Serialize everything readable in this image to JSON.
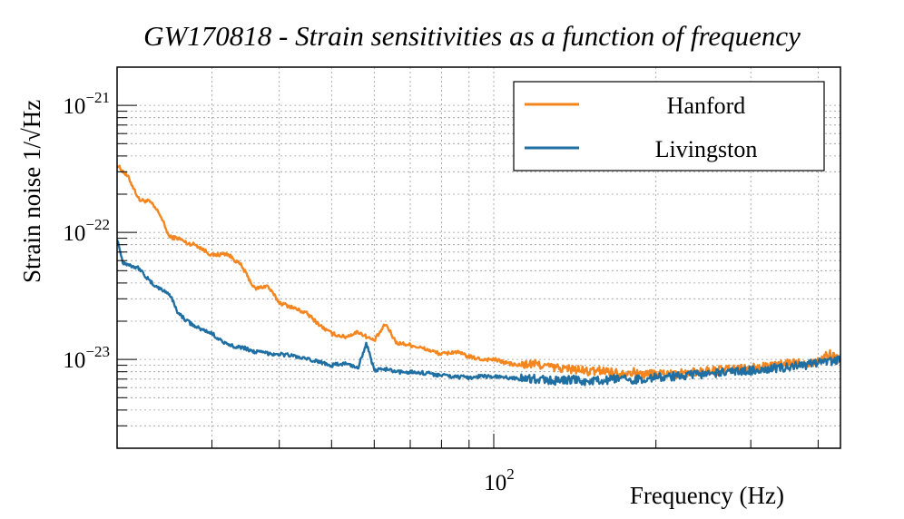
{
  "chart_data": {
    "type": "line",
    "title": "GW170818 - Strain sensitivities as a function of frequency",
    "xlabel": "Frequency (Hz)",
    "ylabel": "Strain noise 1/√Hz",
    "x_scale": "log",
    "y_scale": "log",
    "xlim": [
      20,
      440
    ],
    "ylim": [
      2e-24,
      2e-21
    ],
    "grid": true,
    "legend": "top-right",
    "x_ticks": [
      {
        "value": 100,
        "base": "10",
        "exp": "2"
      }
    ],
    "y_ticks": [
      {
        "value": 1e-21,
        "base": "10",
        "exp": "−21"
      },
      {
        "value": 1e-22,
        "base": "10",
        "exp": "−22"
      },
      {
        "value": 1e-23,
        "base": "10",
        "exp": "−23"
      }
    ],
    "series": [
      {
        "name": "Hanford",
        "color": "#f5851f",
        "x": [
          20,
          21,
          22,
          23,
          24,
          25,
          26,
          27,
          28,
          30,
          32,
          34,
          36,
          38,
          40,
          42,
          45,
          48,
          50,
          53,
          56,
          60,
          63,
          66,
          70,
          75,
          80,
          85,
          90,
          95,
          100,
          110,
          120,
          130,
          140,
          150,
          160,
          170,
          180,
          190,
          200,
          220,
          240,
          260,
          280,
          300,
          320,
          340,
          360,
          380,
          400,
          420,
          440
        ],
        "y": [
          3.4e-22,
          2.7e-22,
          1.8e-22,
          1.75e-22,
          1.4e-22,
          9.2e-23,
          9e-23,
          8.2e-23,
          8e-23,
          6.6e-23,
          6.8e-23,
          5.5e-23,
          3.6e-23,
          3.8e-23,
          2.8e-23,
          2.6e-23,
          2.3e-23,
          1.8e-23,
          1.6e-23,
          1.5e-23,
          1.65e-23,
          1.4e-23,
          1.9e-23,
          1.35e-23,
          1.3e-23,
          1.2e-23,
          1.1e-23,
          1.15e-23,
          1.05e-23,
          1e-23,
          1e-23,
          9e-24,
          9.2e-24,
          8.6e-24,
          8.4e-24,
          8e-24,
          8.2e-24,
          7.8e-24,
          8e-24,
          7.6e-24,
          7.8e-24,
          7.7e-24,
          8e-24,
          8.2e-24,
          8.4e-24,
          8.5e-24,
          8.8e-24,
          9e-24,
          9.5e-24,
          9.3e-24,
          9.8e-24,
          1.1e-23,
          1e-23
        ]
      },
      {
        "name": "Livingston",
        "color": "#1f6fa3",
        "x": [
          20,
          20.5,
          21,
          22,
          23,
          24,
          25,
          26,
          27,
          28,
          30,
          32,
          34,
          36,
          38,
          40,
          42,
          45,
          48,
          50,
          53,
          56,
          58,
          60,
          63,
          66,
          70,
          75,
          80,
          85,
          90,
          95,
          100,
          110,
          120,
          130,
          140,
          150,
          160,
          170,
          180,
          190,
          200,
          220,
          240,
          260,
          280,
          300,
          320,
          340,
          360,
          380,
          400,
          420,
          440
        ],
        "y": [
          9e-23,
          5.8e-23,
          5.6e-23,
          5.2e-23,
          4.1e-23,
          3.6e-23,
          3.3e-23,
          2.3e-23,
          2e-23,
          1.8e-23,
          1.6e-23,
          1.3e-23,
          1.25e-23,
          1.15e-23,
          1.12e-23,
          1.1e-23,
          1.08e-23,
          1e-23,
          9.5e-24,
          9e-24,
          9.3e-24,
          8.6e-24,
          1.35e-23,
          8.2e-24,
          8.4e-24,
          7.9e-24,
          8e-24,
          7.8e-24,
          7.5e-24,
          7.3e-24,
          7.2e-24,
          7.4e-24,
          7.3e-24,
          7.1e-24,
          7e-24,
          6.8e-24,
          6.9e-24,
          6.7e-24,
          6.8e-24,
          7e-24,
          6.9e-24,
          7.1e-24,
          7.2e-24,
          7.4e-24,
          7.6e-24,
          7.8e-24,
          8e-24,
          8.2e-24,
          8.4e-24,
          8.6e-24,
          8.8e-24,
          9e-24,
          9.4e-24,
          9.6e-24,
          1e-23
        ]
      }
    ]
  }
}
